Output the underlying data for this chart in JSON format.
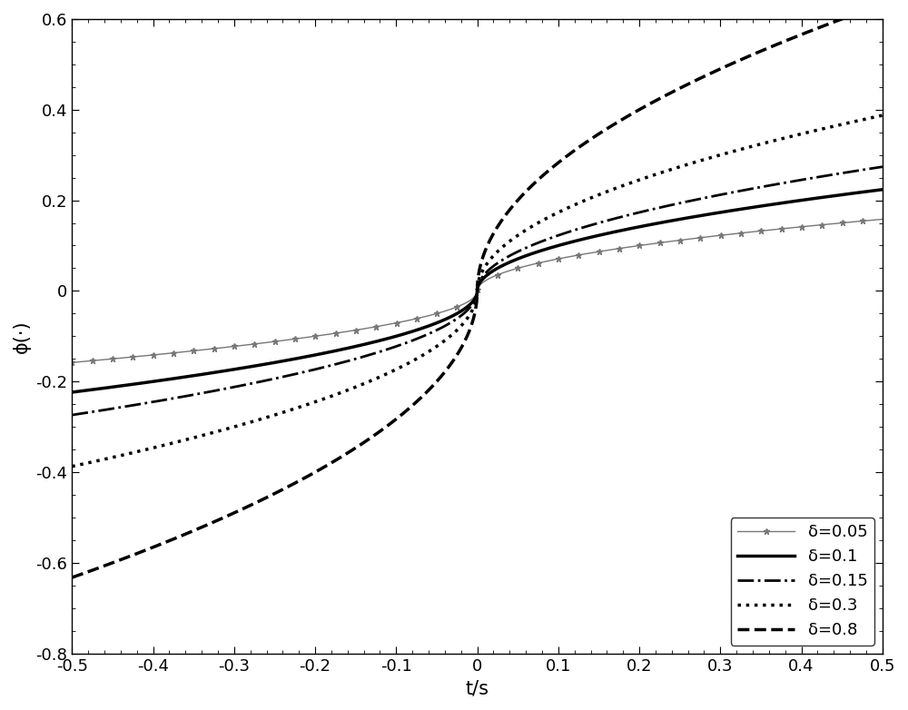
{
  "title": "",
  "xlabel": "t/s",
  "ylabel": "ϕ(·)",
  "xlim": [
    -0.5,
    0.5
  ],
  "ylim": [
    -0.8,
    0.6
  ],
  "yticks": [
    -0.8,
    -0.6,
    -0.4,
    -0.2,
    0.0,
    0.2,
    0.4,
    0.6
  ],
  "xticks": [
    -0.5,
    -0.4,
    -0.3,
    -0.2,
    -0.1,
    0.0,
    0.1,
    0.2,
    0.3,
    0.4,
    0.5
  ],
  "deltas": [
    0.05,
    0.1,
    0.15,
    0.3,
    0.8
  ],
  "line_styles": [
    {
      "linestyle": "-",
      "linewidth": 1.0,
      "color": "#777777",
      "marker": "*",
      "markersize": 5,
      "markevery": 50,
      "label": "δ=0.05"
    },
    {
      "linestyle": "-",
      "linewidth": 2.5,
      "color": "#000000",
      "marker": null,
      "label": "δ=0.1"
    },
    {
      "linestyle": "-.",
      "linewidth": 2.0,
      "color": "#000000",
      "marker": null,
      "label": "δ=0.15"
    },
    {
      "linestyle": ":",
      "linewidth": 2.5,
      "color": "#000000",
      "marker": null,
      "label": "δ=0.3"
    },
    {
      "linestyle": "--",
      "linewidth": 2.5,
      "color": "#000000",
      "marker": null,
      "label": "δ=0.8"
    }
  ],
  "legend_loc": "lower right",
  "legend_fontsize": 13,
  "axis_fontsize": 15,
  "tick_fontsize": 13,
  "background_color": "#ffffff",
  "n_points": 2000,
  "power": 0.5
}
